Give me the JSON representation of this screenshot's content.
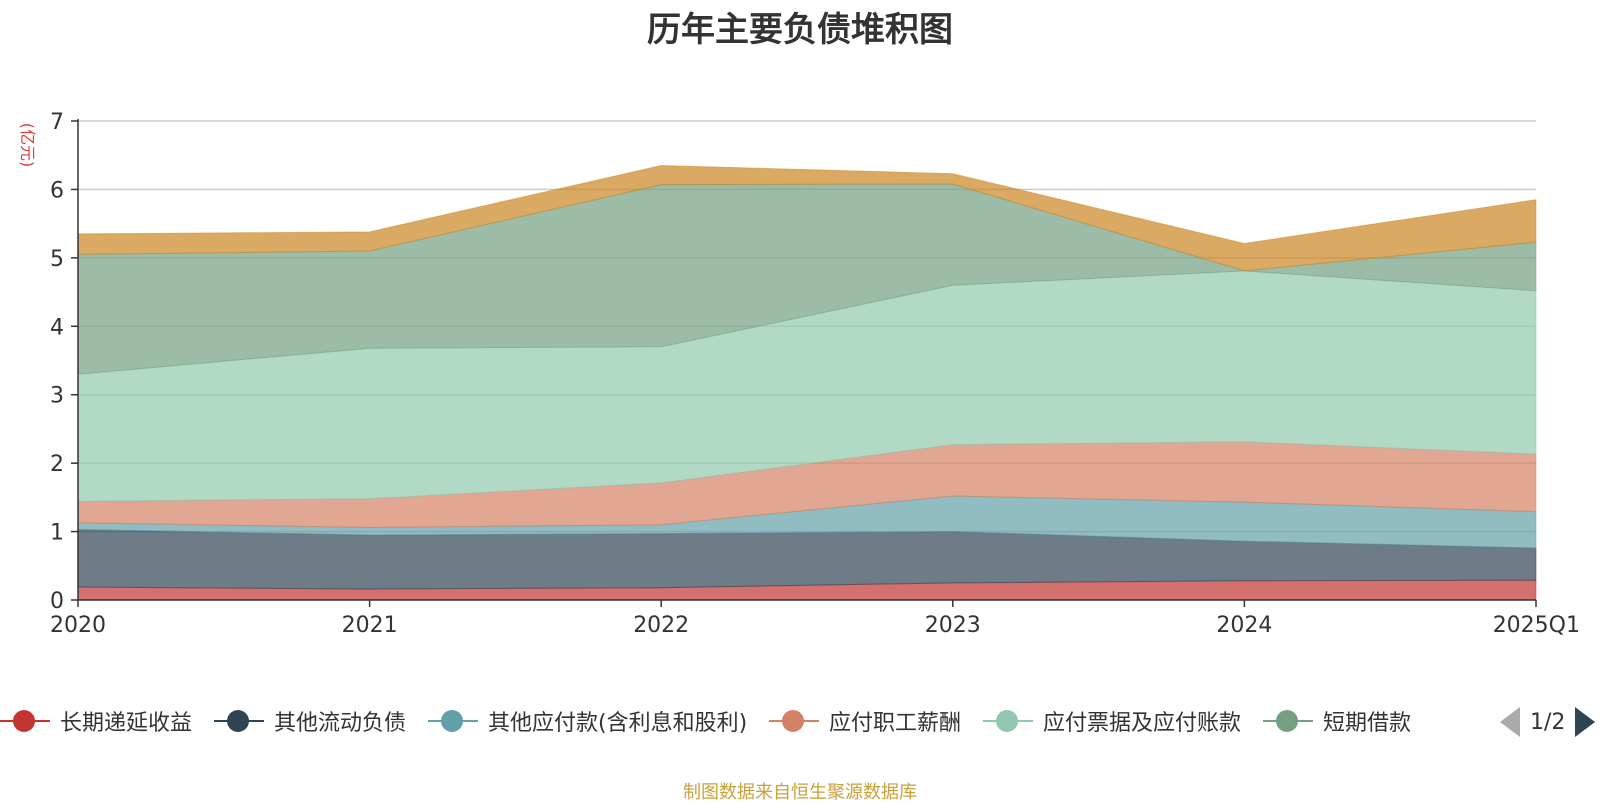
{
  "chart_data": {
    "type": "area",
    "stacked": true,
    "title": "历年主要负债堆积图",
    "ylabel": "(亿元)",
    "xlabel": "",
    "categories": [
      "2020",
      "2021",
      "2022",
      "2023",
      "2024",
      "2025Q1"
    ],
    "ylim": [
      0,
      7
    ],
    "yticks": [
      "0",
      "1",
      "2",
      "3",
      "4",
      "5",
      "6",
      "7"
    ],
    "grid": true,
    "legend_position": "bottom",
    "series": [
      {
        "name": "长期递延收益",
        "values": [
          0.19,
          0.16,
          0.18,
          0.25,
          0.28,
          0.29
        ],
        "color": "#c23531"
      },
      {
        "name": "其他流动负债",
        "values": [
          0.84,
          0.79,
          0.79,
          0.75,
          0.58,
          0.47
        ],
        "color": "#2f4554"
      },
      {
        "name": "其他应付款(含利息和股利)",
        "values": [
          0.1,
          0.11,
          0.13,
          0.52,
          0.57,
          0.53
        ],
        "color": "#61a0a8"
      },
      {
        "name": "应付职工薪酬",
        "values": [
          0.31,
          0.42,
          0.61,
          0.75,
          0.88,
          0.84
        ],
        "color": "#d48265"
      },
      {
        "name": "应付票据及应付账款",
        "values": [
          1.86,
          2.2,
          1.99,
          2.33,
          2.5,
          2.39
        ],
        "color": "#91c7ae"
      },
      {
        "name": "短期借款",
        "values": [
          1.75,
          1.42,
          2.37,
          1.48,
          0.0,
          0.71
        ],
        "color": "#749f83"
      },
      {
        "name": "",
        "values": [
          0.3,
          0.28,
          0.28,
          0.15,
          0.4,
          0.62
        ],
        "color": "#ca8622"
      }
    ]
  },
  "legend": {
    "items": [
      {
        "label": "长期递延收益",
        "color": "#c23531"
      },
      {
        "label": "其他流动负债",
        "color": "#2f4554"
      },
      {
        "label": "其他应付款(含利息和股利)",
        "color": "#61a0a8"
      },
      {
        "label": "应付职工薪酬",
        "color": "#d48265"
      },
      {
        "label": "应付票据及应付账款",
        "color": "#91c7ae"
      },
      {
        "label": "短期借款",
        "color": "#749f83"
      }
    ],
    "page_text": "1/2"
  },
  "footer": "制图数据来自恒生聚源数据库"
}
